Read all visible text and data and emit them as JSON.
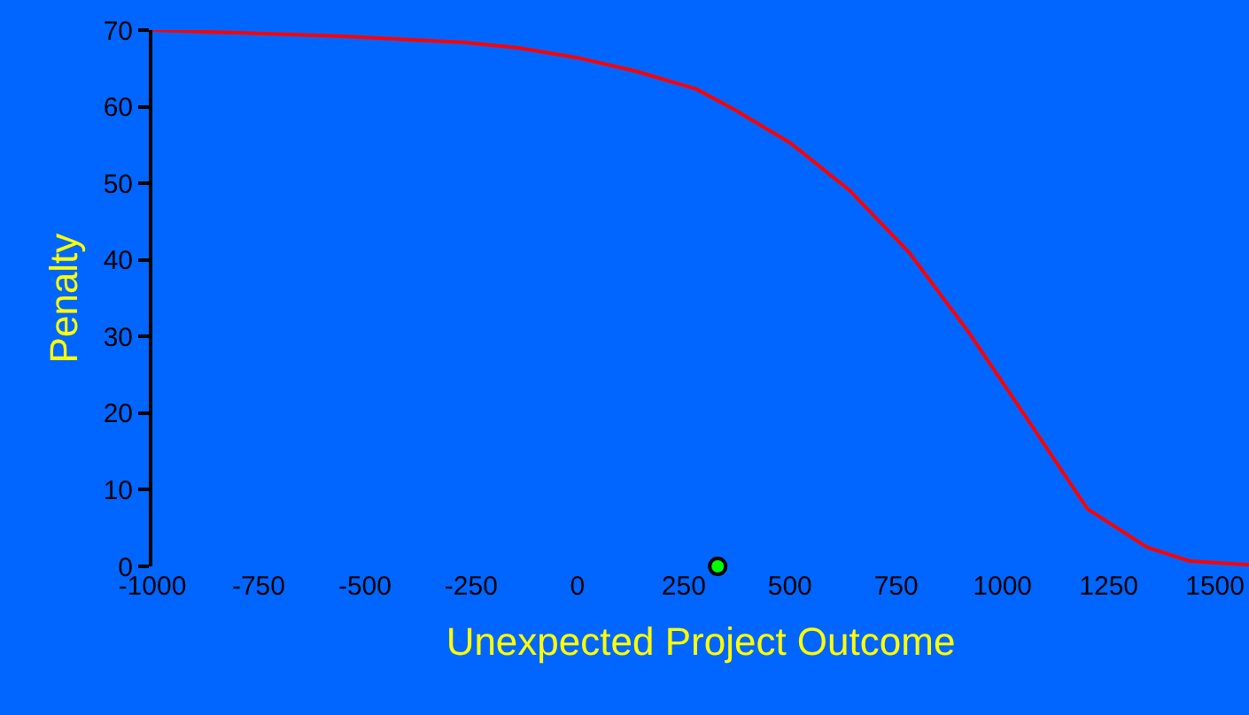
{
  "chart_data": {
    "type": "line",
    "xlabel": "Unexpected Project Outcome",
    "ylabel": "Penalty",
    "xlim": [
      -1000,
      1580
    ],
    "xticks": [
      -1000,
      -750,
      -500,
      -250,
      0,
      250,
      500,
      750,
      1000,
      1250,
      1500
    ],
    "ylim": [
      0,
      70
    ],
    "yticks": [
      0,
      10,
      20,
      30,
      40,
      50,
      60,
      70
    ],
    "grid": false,
    "legend": false,
    "series": [
      {
        "color": "#ff0000",
        "marker": "none",
        "line_style": "solid",
        "x": [
          -1000,
          -770,
          -550,
          -270,
          -140,
          0,
          140,
          280,
          370,
          500,
          640,
          780,
          920,
          1060,
          1200,
          1340,
          1440,
          1580
        ],
        "values": [
          70,
          69.6,
          69.2,
          68.4,
          67.7,
          66.4,
          64.6,
          62.3,
          59.6,
          55.3,
          49.1,
          41.0,
          30.6,
          19.1,
          7.5,
          2.5,
          0.7,
          0.2
        ]
      },
      {
        "type": "scatter",
        "color": "#00ff00",
        "marker": "circle",
        "x": [
          330
        ],
        "values": [
          0
        ]
      }
    ]
  }
}
